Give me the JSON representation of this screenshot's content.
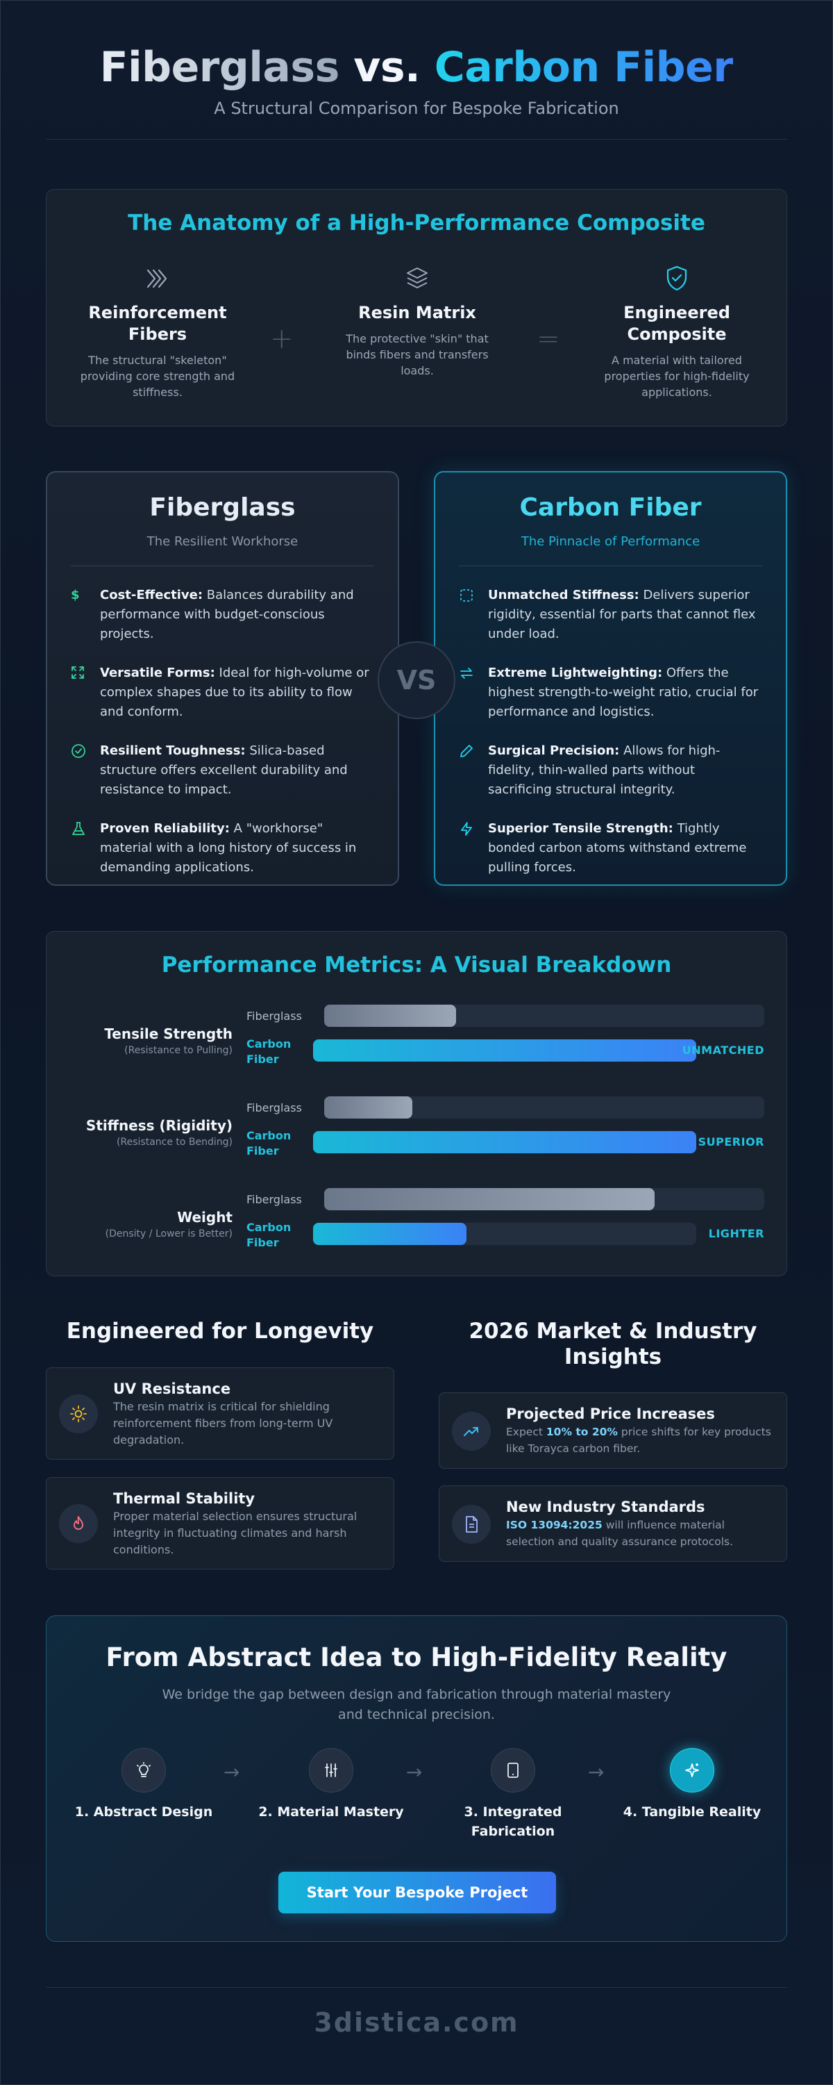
{
  "header": {
    "title_part1": "Fiberglass",
    "title_vs": " vs. ",
    "title_part2": "Carbon Fiber",
    "subtitle": "A Structural Comparison for Bespoke Fabrication"
  },
  "anatomy": {
    "title": "The Anatomy of a High-Performance Composite",
    "items": [
      {
        "icon": "chevrons-right-icon",
        "title": "Reinforcement Fibers",
        "desc": "The structural \"skeleton\" providing core strength and stiffness."
      },
      {
        "icon": "layers-icon",
        "title": "Resin Matrix",
        "desc": "The protective \"skin\" that binds fibers and transfers loads."
      },
      {
        "icon": "shield-check-icon",
        "title": "Engineered Composite",
        "desc": "A material with tailored properties for high-fidelity applications."
      }
    ],
    "plus": "+",
    "equals": "="
  },
  "fiberglass": {
    "title": "Fiberglass",
    "tagline": "The Resilient Workhorse",
    "color": "#34d399",
    "features": [
      {
        "icon": "dollar-icon",
        "bold": "Cost-Effective:",
        "text": " Balances durability and performance with budget-conscious projects."
      },
      {
        "icon": "expand-icon",
        "bold": "Versatile Forms:",
        "text": " Ideal for high-volume or complex shapes due to its ability to flow and conform."
      },
      {
        "icon": "check-circle-icon",
        "bold": "Resilient Toughness:",
        "text": " Silica-based structure offers excellent durability and resistance to impact."
      },
      {
        "icon": "flask-icon",
        "bold": "Proven Reliability:",
        "text": " A \"workhorse\" material with a long history of success in demanding applications."
      }
    ]
  },
  "vs_label": "VS",
  "carbon": {
    "title": "Carbon Fiber",
    "tagline": "The Pinnacle of Performance",
    "color": "#22d3ee",
    "features": [
      {
        "icon": "dashed-square-icon",
        "bold": "Unmatched Stiffness:",
        "text": " Delivers superior rigidity, essential for parts that cannot flex under load."
      },
      {
        "icon": "arrows-exchange-icon",
        "bold": "Extreme Lightweighting:",
        "text": " Offers the highest strength-to-weight ratio, crucial for performance and logistics."
      },
      {
        "icon": "pencil-icon",
        "bold": "Surgical Precision:",
        "text": " Allows for high-fidelity, thin-walled parts without sacrificing structural integrity."
      },
      {
        "icon": "lightning-icon",
        "bold": "Superior Tensile Strength:",
        "text": " Tightly bonded carbon atoms withstand extreme pulling forces."
      }
    ]
  },
  "metrics": {
    "title": "Performance Metrics: A Visual Breakdown",
    "fg_label": "Fiberglass",
    "cf_label": "Carbon Fiber",
    "rows": [
      {
        "name": "Tensile Strength",
        "sub": "(Resistance to Pulling)",
        "fg": 0.3,
        "cf": 1.0,
        "badge": "UNMATCHED"
      },
      {
        "name": "Stiffness (Rigidity)",
        "sub": "(Resistance to Bending)",
        "fg": 0.2,
        "cf": 1.0,
        "badge": "SUPERIOR"
      },
      {
        "name": "Weight",
        "sub": "(Density / Lower is Better)",
        "fg": 0.75,
        "cf": 0.4,
        "badge": "LIGHTER"
      }
    ]
  },
  "longevity": {
    "title": "Engineered for Longevity",
    "items": [
      {
        "icon": "sun-icon",
        "title": "UV Resistance",
        "desc": "The resin matrix is critical for shielding reinforcement fibers from long-term UV degradation."
      },
      {
        "icon": "flame-icon",
        "title": "Thermal Stability",
        "desc": "Proper material selection ensures structural integrity in fluctuating climates and harsh conditions."
      }
    ]
  },
  "insights": {
    "title": "2026 Market & Industry Insights",
    "items": [
      {
        "icon": "trending-up-icon",
        "title": "Projected Price Increases",
        "pre": "Expect ",
        "hl": "10% to 20%",
        "post": " price shifts for key products like Torayca carbon fiber."
      },
      {
        "icon": "document-icon",
        "title": "New Industry Standards",
        "pre": "",
        "hl": "ISO 13094:2025",
        "post": " will influence material selection and quality assurance protocols."
      }
    ]
  },
  "process": {
    "title": "From Abstract Idea to High-Fidelity Reality",
    "desc": "We bridge the gap between design and fabrication through material mastery and technical precision.",
    "steps": [
      {
        "icon": "lightbulb-icon",
        "label": "1. Abstract Design"
      },
      {
        "icon": "sliders-icon",
        "label": "2. Material Mastery"
      },
      {
        "icon": "tablet-icon",
        "label": "3. Integrated Fabrication"
      },
      {
        "icon": "sparkle-icon",
        "label": "4. Tangible Reality"
      }
    ],
    "arrow": "→",
    "cta": "Start Your Bespoke Project"
  },
  "footer": {
    "brand": "3distica.com"
  }
}
